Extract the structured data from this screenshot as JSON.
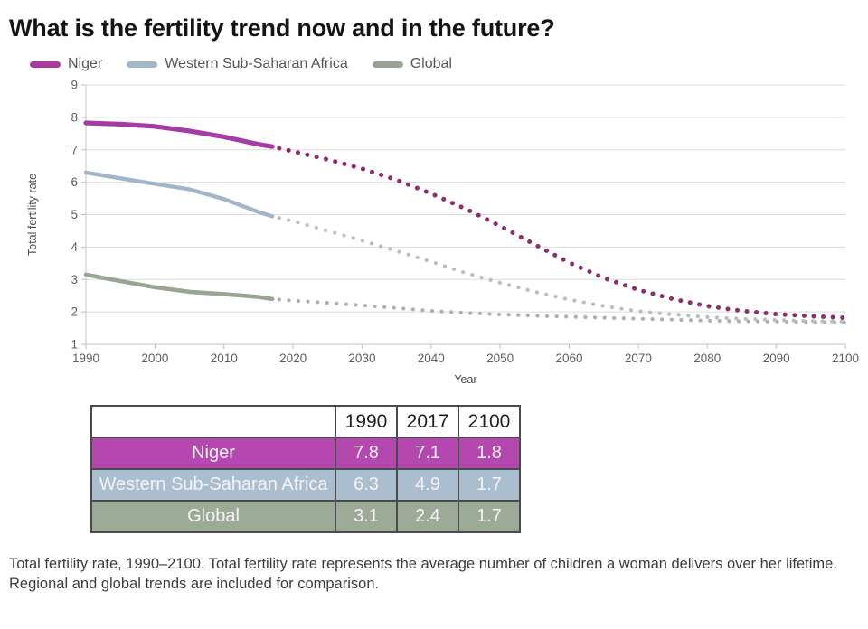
{
  "title": "What is the fertility trend now and in the future?",
  "legend": [
    {
      "label": "Niger",
      "color": "#a8399f"
    },
    {
      "label": "Western Sub-Saharan Africa",
      "color": "#a4b6c9"
    },
    {
      "label": "Global",
      "color": "#9aa294"
    }
  ],
  "chart_data": {
    "type": "line",
    "title": "",
    "xlabel": "Year",
    "ylabel": "Total fertility rate",
    "xlim": [
      1990,
      2100
    ],
    "ylim": [
      1,
      9
    ],
    "xticks": [
      1990,
      2000,
      2010,
      2020,
      2030,
      2040,
      2050,
      2060,
      2070,
      2080,
      2090,
      2100
    ],
    "yticks": [
      1,
      2,
      3,
      4,
      5,
      6,
      7,
      8,
      9
    ],
    "grid": "horizontal-only",
    "legend_position": "top-left",
    "note": "solid line = observed 1990-2017, dotted line = projected 2017-2100",
    "series": [
      {
        "name": "Niger",
        "line_color": "#a53ba3",
        "dot_color": "#8d2d72",
        "observed": {
          "x": [
            1990,
            1995,
            2000,
            2005,
            2010,
            2015,
            2017
          ],
          "y": [
            7.83,
            7.79,
            7.72,
            7.58,
            7.4,
            7.17,
            7.1
          ]
        },
        "projected": {
          "x": [
            2018,
            2020,
            2025,
            2030,
            2035,
            2040,
            2045,
            2050,
            2055,
            2060,
            2065,
            2070,
            2075,
            2080,
            2085,
            2090,
            2095,
            2100
          ],
          "y": [
            7.05,
            6.95,
            6.7,
            6.42,
            6.07,
            5.65,
            5.18,
            4.65,
            4.08,
            3.52,
            3.05,
            2.68,
            2.4,
            2.18,
            2.03,
            1.93,
            1.87,
            1.82
          ]
        }
      },
      {
        "name": "Western Sub-Saharan Africa",
        "line_color": "#a3b5c9",
        "dot_color": "#b6bec6",
        "observed": {
          "x": [
            1990,
            1995,
            2000,
            2005,
            2010,
            2015,
            2017
          ],
          "y": [
            6.3,
            6.12,
            5.95,
            5.78,
            5.48,
            5.08,
            4.95
          ]
        },
        "projected": {
          "x": [
            2018,
            2020,
            2025,
            2030,
            2035,
            2040,
            2045,
            2050,
            2055,
            2060,
            2065,
            2070,
            2075,
            2080,
            2085,
            2090,
            2095,
            2100
          ],
          "y": [
            4.9,
            4.8,
            4.5,
            4.2,
            3.88,
            3.55,
            3.2,
            2.9,
            2.62,
            2.38,
            2.18,
            2.02,
            1.92,
            1.84,
            1.79,
            1.75,
            1.72,
            1.7
          ]
        }
      },
      {
        "name": "Global",
        "line_color": "#9aa492",
        "dot_color": "#adb2a9",
        "observed": {
          "x": [
            1990,
            1995,
            2000,
            2005,
            2010,
            2015,
            2017
          ],
          "y": [
            3.15,
            2.95,
            2.76,
            2.62,
            2.55,
            2.46,
            2.4
          ]
        },
        "projected": {
          "x": [
            2018,
            2020,
            2025,
            2030,
            2035,
            2040,
            2045,
            2050,
            2055,
            2060,
            2065,
            2070,
            2075,
            2080,
            2085,
            2090,
            2095,
            2100
          ],
          "y": [
            2.38,
            2.35,
            2.28,
            2.2,
            2.12,
            2.03,
            1.97,
            1.92,
            1.88,
            1.85,
            1.82,
            1.79,
            1.76,
            1.73,
            1.71,
            1.7,
            1.69,
            1.68
          ]
        }
      }
    ]
  },
  "table": {
    "columns": [
      "",
      "1990",
      "2017",
      "2100"
    ],
    "rows": [
      {
        "label": "Niger",
        "values": [
          "7.8",
          "7.1",
          "1.8"
        ],
        "bg": "#b548af"
      },
      {
        "label": "Western Sub-Saharan Africa",
        "values": [
          "6.3",
          "4.9",
          "1.7"
        ],
        "bg": "#abbecf"
      },
      {
        "label": "Global",
        "values": [
          "3.1",
          "2.4",
          "1.7"
        ],
        "bg": "#9daa97"
      }
    ]
  },
  "caption": "Total fertility rate, 1990–2100. Total fertility rate represents the average number of children a woman delivers over her lifetime. Regional and global trends are included for comparison."
}
